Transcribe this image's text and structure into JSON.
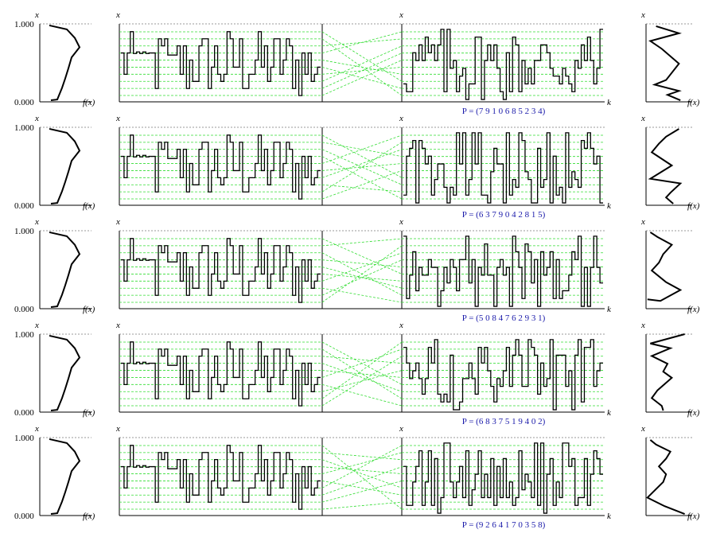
{
  "labels": {
    "x": "x",
    "fx": "f(x)",
    "k": "k",
    "top": "1.000",
    "bottom": "0.000"
  },
  "colors": {
    "grid": "#33dd33",
    "frame": "#000000",
    "dashed": "#777777",
    "perm_text": "#1a1aaa"
  },
  "rows": [
    {
      "perm": "P = (7 9 1 0 6 8 5 2 3 4)",
      "perm_order": [
        7,
        9,
        1,
        0,
        6,
        8,
        5,
        2,
        3,
        4
      ],
      "left_f": [
        [
          0.07,
          0.02
        ],
        [
          0.11,
          0.03
        ],
        [
          0.14,
          0.18
        ],
        [
          0.16,
          0.3
        ],
        [
          0.18,
          0.43
        ],
        [
          0.2,
          0.57
        ],
        [
          0.25,
          0.7
        ],
        [
          0.22,
          0.82
        ],
        [
          0.17,
          0.93
        ],
        [
          0.06,
          0.98
        ]
      ],
      "right_f": [
        [
          0.24,
          0.02
        ],
        [
          0.15,
          0.09
        ],
        [
          0.23,
          0.14
        ],
        [
          0.06,
          0.22
        ],
        [
          0.14,
          0.28
        ],
        [
          0.23,
          0.49
        ],
        [
          0.11,
          0.68
        ],
        [
          0.03,
          0.78
        ],
        [
          0.23,
          0.88
        ],
        [
          0.07,
          0.97
        ]
      ]
    },
    {
      "perm": "P = (6 3 7 9 0 4 2 8 1 5)",
      "perm_order": [
        6,
        3,
        7,
        9,
        0,
        4,
        2,
        8,
        1,
        5
      ],
      "left_f": [
        [
          0.07,
          0.02
        ],
        [
          0.11,
          0.03
        ],
        [
          0.14,
          0.18
        ],
        [
          0.16,
          0.3
        ],
        [
          0.18,
          0.43
        ],
        [
          0.2,
          0.57
        ],
        [
          0.25,
          0.7
        ],
        [
          0.22,
          0.82
        ],
        [
          0.17,
          0.93
        ],
        [
          0.06,
          0.98
        ]
      ],
      "right_f": [
        [
          0.19,
          0.02
        ],
        [
          0.14,
          0.1
        ],
        [
          0.17,
          0.16
        ],
        [
          0.24,
          0.28
        ],
        [
          0.03,
          0.34
        ],
        [
          0.1,
          0.42
        ],
        [
          0.18,
          0.51
        ],
        [
          0.04,
          0.68
        ],
        [
          0.09,
          0.79
        ],
        [
          0.14,
          0.88
        ],
        [
          0.23,
          0.98
        ]
      ]
    },
    {
      "perm": "P = (5 0 8 4 7 6 2 9 3 1)",
      "perm_order": [
        5,
        0,
        8,
        4,
        7,
        6,
        2,
        9,
        3,
        1
      ],
      "left_f": [
        [
          0.07,
          0.02
        ],
        [
          0.11,
          0.03
        ],
        [
          0.14,
          0.18
        ],
        [
          0.16,
          0.3
        ],
        [
          0.18,
          0.43
        ],
        [
          0.2,
          0.57
        ],
        [
          0.25,
          0.7
        ],
        [
          0.22,
          0.82
        ],
        [
          0.17,
          0.93
        ],
        [
          0.06,
          0.98
        ]
      ],
      "right_f": [
        [
          0.01,
          0.12
        ],
        [
          0.1,
          0.1
        ],
        [
          0.24,
          0.24
        ],
        [
          0.14,
          0.34
        ],
        [
          0.04,
          0.49
        ],
        [
          0.09,
          0.59
        ],
        [
          0.12,
          0.7
        ],
        [
          0.18,
          0.82
        ],
        [
          0.08,
          0.92
        ],
        [
          0.03,
          0.98
        ]
      ]
    },
    {
      "perm": "P = (6 8 3 7 5 1 9 4 0 2)",
      "perm_order": [
        6,
        8,
        3,
        7,
        5,
        1,
        9,
        4,
        0,
        2
      ],
      "left_f": [
        [
          0.07,
          0.02
        ],
        [
          0.11,
          0.03
        ],
        [
          0.14,
          0.18
        ],
        [
          0.16,
          0.3
        ],
        [
          0.18,
          0.43
        ],
        [
          0.2,
          0.57
        ],
        [
          0.25,
          0.7
        ],
        [
          0.22,
          0.82
        ],
        [
          0.17,
          0.93
        ],
        [
          0.06,
          0.98
        ]
      ],
      "right_f": [
        [
          0.12,
          0.02
        ],
        [
          0.11,
          0.08
        ],
        [
          0.04,
          0.18
        ],
        [
          0.08,
          0.28
        ],
        [
          0.18,
          0.44
        ],
        [
          0.12,
          0.52
        ],
        [
          0.15,
          0.62
        ],
        [
          0.04,
          0.72
        ],
        [
          0.17,
          0.82
        ],
        [
          0.03,
          0.88
        ],
        [
          0.27,
          1.0
        ]
      ]
    },
    {
      "perm": "P = (9 2 6 4 1 7 0 3 5 8)",
      "perm_order": [
        9,
        2,
        6,
        4,
        1,
        7,
        0,
        3,
        5,
        8
      ],
      "left_f": [
        [
          0.07,
          0.02
        ],
        [
          0.11,
          0.03
        ],
        [
          0.14,
          0.18
        ],
        [
          0.16,
          0.3
        ],
        [
          0.18,
          0.43
        ],
        [
          0.2,
          0.57
        ],
        [
          0.25,
          0.7
        ],
        [
          0.22,
          0.82
        ],
        [
          0.17,
          0.93
        ],
        [
          0.06,
          0.98
        ]
      ],
      "right_f": [
        [
          0.27,
          0.02
        ],
        [
          0.13,
          0.12
        ],
        [
          0.01,
          0.23
        ],
        [
          0.12,
          0.43
        ],
        [
          0.14,
          0.53
        ],
        [
          0.09,
          0.63
        ],
        [
          0.14,
          0.73
        ],
        [
          0.17,
          0.82
        ],
        [
          0.07,
          0.91
        ],
        [
          0.03,
          0.97
        ]
      ]
    }
  ]
}
